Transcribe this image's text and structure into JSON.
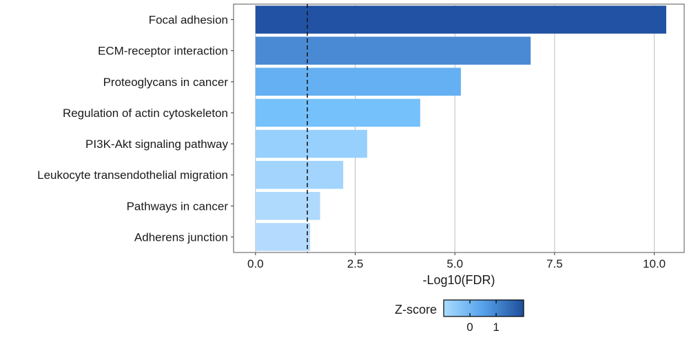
{
  "chart_data": {
    "type": "bar",
    "orientation": "horizontal",
    "categories": [
      "Focal adhesion",
      "ECM-receptor interaction",
      "Proteoglycans in cancer",
      "Regulation of actin cytoskeleton",
      "PI3K-Akt signaling pathway",
      "Leukocyte transendothelial migration",
      "Pathways in cancer",
      "Adherens junction"
    ],
    "values": [
      10.3,
      6.9,
      5.15,
      4.13,
      2.8,
      2.2,
      1.62,
      1.37
    ],
    "zscore": [
      1.8,
      1.15,
      0.7,
      0.4,
      0.0,
      -0.2,
      -0.45,
      -0.55
    ],
    "bar_colors": [
      "#2152a3",
      "#4a8ad4",
      "#65b0f2",
      "#75c1fb",
      "#97cffd",
      "#a2d4fd",
      "#afd9fd",
      "#b4dbfd"
    ],
    "xlabel": "-Log10(FDR)",
    "xlim": [
      -0.55,
      10.75
    ],
    "x_ticks": [
      "0.0",
      "2.5",
      "5.0",
      "7.5",
      "10.0"
    ],
    "x_tick_values": [
      0,
      2.5,
      5,
      7.5,
      10
    ],
    "threshold_line": 1.3,
    "grid": "vertical major gridlines",
    "legend": {
      "title": "Z-score",
      "placement": "bottom",
      "ticks": [
        "0",
        "1"
      ],
      "tick_values": [
        0,
        1
      ],
      "range": [
        -1,
        2.05
      ],
      "colors": [
        "#a8dcff",
        "#55a0ea",
        "#1e4f9a"
      ]
    }
  }
}
